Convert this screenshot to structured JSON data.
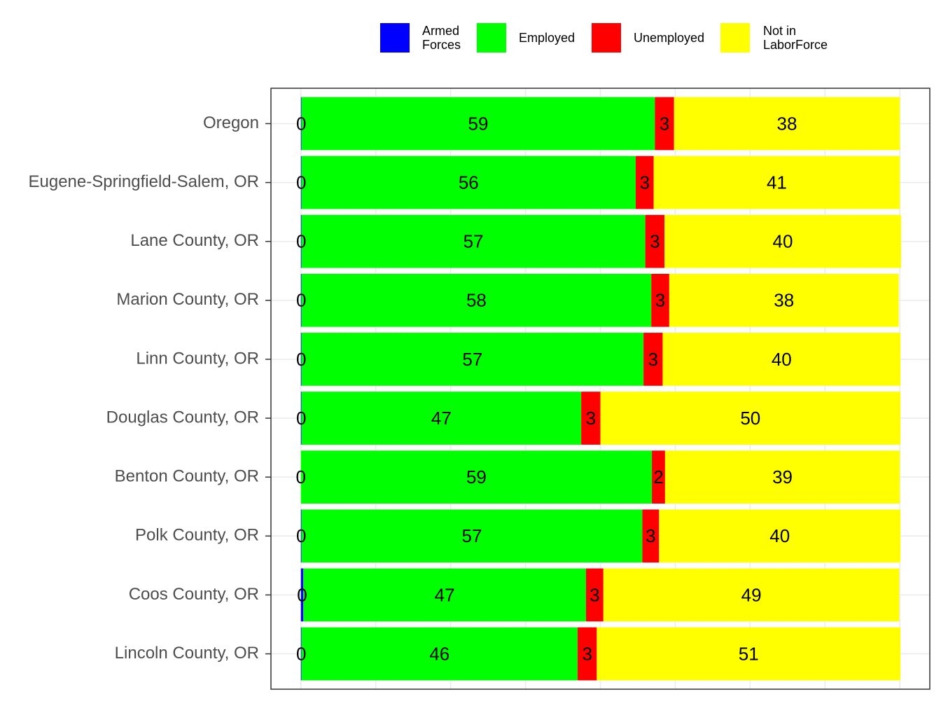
{
  "chart_data": {
    "type": "stacked_barh",
    "categories": [
      "Oregon",
      "Eugene-Springfield-Salem, OR",
      "Lane County, OR",
      "Marion County, OR",
      "Linn County, OR",
      "Douglas County, OR",
      "Benton County, OR",
      "Polk County, OR",
      "Coos County, OR",
      "Lincoln County, OR"
    ],
    "series": [
      {
        "name": "Armed\nForces",
        "color": "#0000ff",
        "values": [
          0.1,
          0.1,
          0.1,
          0.1,
          0.1,
          0.1,
          0.0,
          0.1,
          0.4,
          0.1
        ],
        "value_labels": [
          "0",
          "0",
          "0",
          "0",
          "0",
          "0",
          "0",
          "0",
          "0",
          "0"
        ]
      },
      {
        "name": "Employed",
        "color": "#00ff00",
        "values": [
          59.0,
          55.8,
          57.4,
          58.4,
          57.1,
          46.7,
          58.6,
          56.9,
          47.2,
          46.1
        ],
        "value_labels": [
          "59",
          "56",
          "57",
          "58",
          "57",
          "47",
          "59",
          "57",
          "47",
          "46"
        ]
      },
      {
        "name": "Unemployed",
        "color": "#ff0000",
        "values": [
          3.2,
          3.0,
          3.2,
          3.0,
          3.2,
          3.2,
          2.2,
          2.8,
          2.9,
          3.2
        ],
        "value_labels": [
          "3",
          "3",
          "3",
          "3",
          "3",
          "3",
          "2",
          "3",
          "3",
          "3"
        ]
      },
      {
        "name": "Not in\nLaborForce",
        "color": "#ffff00",
        "values": [
          37.7,
          41.1,
          39.5,
          38.3,
          39.7,
          50.1,
          39.2,
          40.3,
          49.4,
          50.7
        ],
        "value_labels": [
          "38",
          "41",
          "40",
          "38",
          "40",
          "50",
          "39",
          "40",
          "49",
          "51"
        ]
      }
    ],
    "xlim": [
      -5,
      105
    ],
    "xgrid": [
      0,
      12.5,
      25,
      37.5,
      50,
      62.5,
      75,
      87.5,
      100
    ],
    "grid": true,
    "legend": "top"
  }
}
